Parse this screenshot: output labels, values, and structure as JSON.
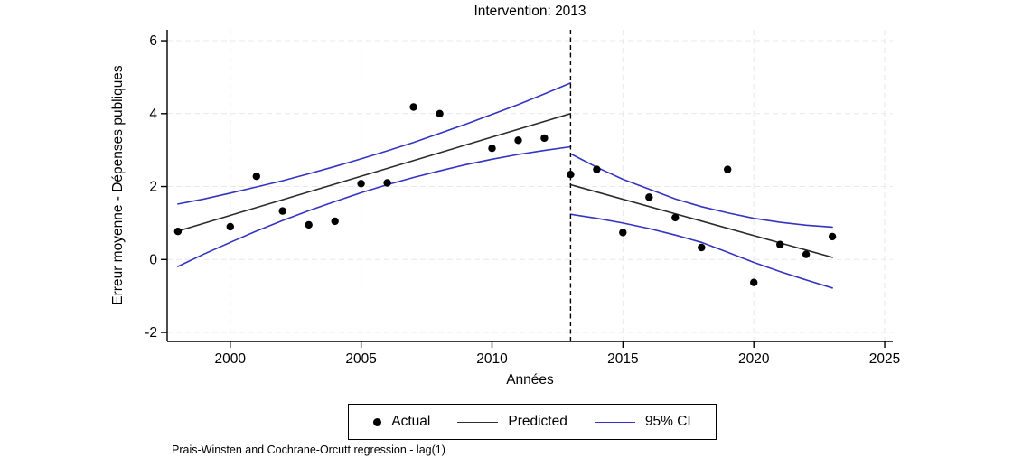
{
  "chart_data": {
    "type": "line",
    "title": "Intervention: 2013",
    "xlabel": "Années",
    "ylabel": "Erreur moyenne - Dépenses publiques",
    "note": "Prais-Winsten and Cochrane-Orcutt regression - lag(1)",
    "legend": {
      "actual": "Actual",
      "predicted": "Predicted",
      "ci": "95% CI"
    },
    "intervention_year": 2013,
    "x_ticks": [
      2000,
      2005,
      2010,
      2015,
      2020,
      2025
    ],
    "y_ticks": [
      -2,
      0,
      2,
      4,
      6
    ],
    "x_range": [
      1997.6,
      2025.3
    ],
    "y_range": [
      -2.25,
      6.3
    ],
    "grid": true,
    "legend_position": "bottom",
    "colors": {
      "actual": "#000000",
      "predicted": "#2b2b2b",
      "ci": "#3434c2",
      "grid": "#e8e8e8",
      "axis": "#000000"
    },
    "actual": [
      [
        1998,
        0.77
      ],
      [
        2000,
        0.9
      ],
      [
        2001,
        2.28
      ],
      [
        2002,
        1.33
      ],
      [
        2003,
        0.95
      ],
      [
        2004,
        1.05
      ],
      [
        2005,
        2.08
      ],
      [
        2006,
        2.1
      ],
      [
        2007,
        4.18
      ],
      [
        2008,
        4.0
      ],
      [
        2010,
        3.05
      ],
      [
        2011,
        3.27
      ],
      [
        2012,
        3.33
      ],
      [
        2013,
        2.33
      ],
      [
        2014,
        2.47
      ],
      [
        2015,
        0.74
      ],
      [
        2016,
        1.71
      ],
      [
        2017,
        1.15
      ],
      [
        2018,
        0.33
      ],
      [
        2019,
        2.47
      ],
      [
        2020,
        -0.63
      ],
      [
        2021,
        0.41
      ],
      [
        2022,
        0.14
      ],
      [
        2023,
        0.63
      ]
    ],
    "predicted_pre": [
      [
        1998,
        0.78
      ],
      [
        2013,
        4.0
      ]
    ],
    "predicted_post": [
      [
        2013,
        2.05
      ],
      [
        2023,
        0.06
      ]
    ],
    "ci_upper_pre": [
      [
        1998,
        1.52
      ],
      [
        1999,
        1.66
      ],
      [
        2000,
        1.82
      ],
      [
        2001,
        1.99
      ],
      [
        2002,
        2.16
      ],
      [
        2003,
        2.35
      ],
      [
        2004,
        2.55
      ],
      [
        2005,
        2.76
      ],
      [
        2006,
        2.98
      ],
      [
        2007,
        3.21
      ],
      [
        2008,
        3.46
      ],
      [
        2009,
        3.71
      ],
      [
        2010,
        3.98
      ],
      [
        2011,
        4.25
      ],
      [
        2012,
        4.54
      ],
      [
        2013,
        4.84
      ]
    ],
    "ci_lower_pre": [
      [
        1998,
        -0.19
      ],
      [
        1999,
        0.15
      ],
      [
        2000,
        0.47
      ],
      [
        2001,
        0.78
      ],
      [
        2002,
        1.07
      ],
      [
        2003,
        1.34
      ],
      [
        2004,
        1.59
      ],
      [
        2005,
        1.83
      ],
      [
        2006,
        2.05
      ],
      [
        2007,
        2.25
      ],
      [
        2008,
        2.43
      ],
      [
        2009,
        2.6
      ],
      [
        2010,
        2.75
      ],
      [
        2011,
        2.88
      ],
      [
        2012,
        2.99
      ],
      [
        2013,
        3.09
      ]
    ],
    "ci_upper_post": [
      [
        2013,
        2.9
      ],
      [
        2014,
        2.53
      ],
      [
        2015,
        2.2
      ],
      [
        2016,
        1.93
      ],
      [
        2017,
        1.66
      ],
      [
        2018,
        1.45
      ],
      [
        2019,
        1.28
      ],
      [
        2020,
        1.13
      ],
      [
        2021,
        1.02
      ],
      [
        2022,
        0.94
      ],
      [
        2023,
        0.89
      ]
    ],
    "ci_lower_post": [
      [
        2013,
        1.24
      ],
      [
        2014,
        1.13
      ],
      [
        2015,
        1.0
      ],
      [
        2016,
        0.85
      ],
      [
        2017,
        0.67
      ],
      [
        2018,
        0.47
      ],
      [
        2019,
        0.2
      ],
      [
        2020,
        -0.08
      ],
      [
        2021,
        -0.33
      ],
      [
        2022,
        -0.56
      ],
      [
        2023,
        -0.78
      ]
    ]
  }
}
